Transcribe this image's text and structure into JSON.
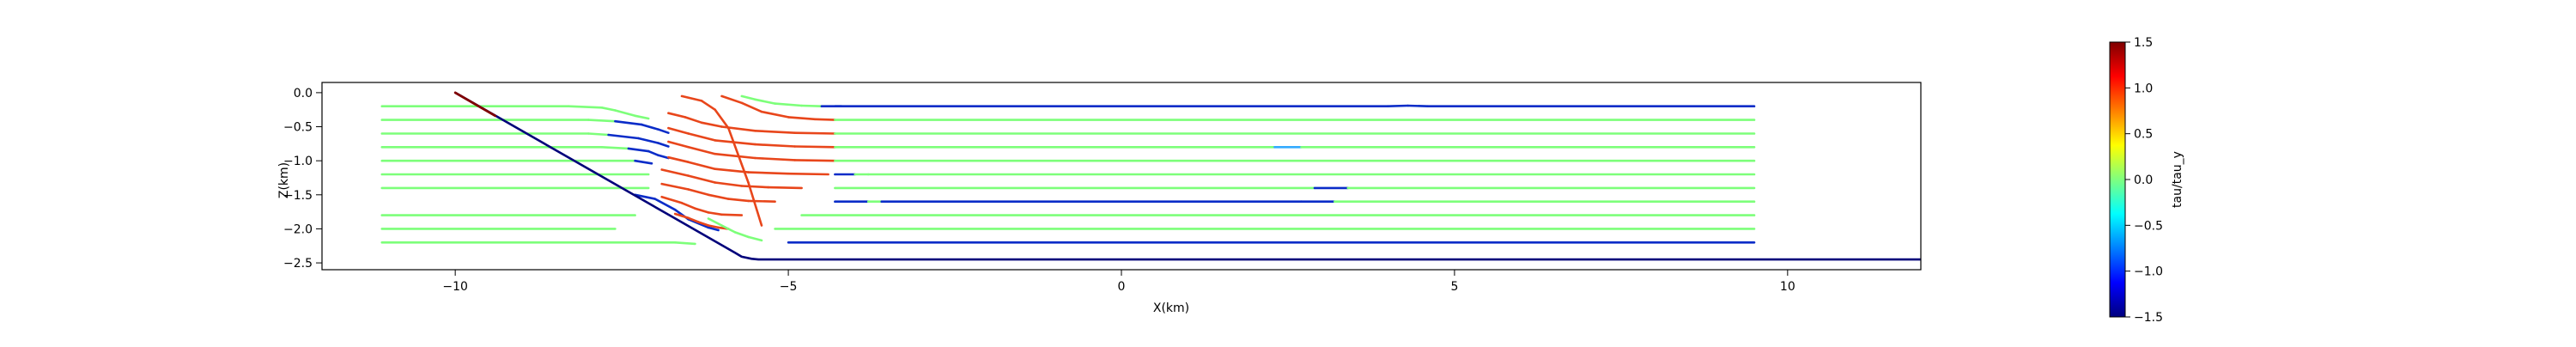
{
  "chart_data": {
    "type": "line",
    "title": "",
    "xlabel": "X(km)",
    "ylabel": "Z(km)",
    "xlim": [
      -12.0,
      12.0
    ],
    "ylim": [
      -2.6,
      0.15
    ],
    "xticks": [
      -10,
      -5,
      0,
      5,
      10
    ],
    "yticks": [
      0.0,
      -0.5,
      -1.0,
      -1.5,
      -2.0,
      -2.5
    ],
    "grid": false,
    "colorbar": {
      "label": "tau/tau_y",
      "vmin": -1.5,
      "vmax": 1.5,
      "colormap": "jet",
      "ticks": [
        1.5,
        1.0,
        0.5,
        0.0,
        -0.5,
        -1.0,
        -1.5
      ]
    },
    "colors": {
      "high": "#e8461b",
      "neutral": "#7dff7a",
      "low": "#0a2cc8",
      "boundary": "#00007a",
      "surface_fault": "#800000"
    },
    "boundary": {
      "name": "",
      "x": [
        -10.0,
        -5.8,
        -5.7,
        -5.55,
        -5.45,
        12.0
      ],
      "y": [
        0.0,
        -2.35,
        -2.41,
        -2.44,
        -2.45,
        -2.45
      ]
    },
    "streamlines": [
      {
        "x": [
          -11.1,
          -8.3,
          -7.8,
          -7.6,
          -7.3,
          -7.1
        ],
        "y": [
          -0.2,
          -0.2,
          -0.22,
          -0.26,
          -0.34,
          -0.38
        ],
        "levels": [
          0.0,
          0.0,
          0.0,
          0.0,
          0.0,
          0.0
        ]
      },
      {
        "x": [
          -11.1,
          -8.0,
          -7.6,
          -7.2,
          -6.95,
          -6.8
        ],
        "y": [
          -0.4,
          -0.4,
          -0.42,
          -0.47,
          -0.54,
          -0.59
        ],
        "levels": [
          0.0,
          0.0,
          0.0,
          -1.2,
          -1.2,
          -1.2
        ]
      },
      {
        "x": [
          -11.1,
          -8.0,
          -7.7,
          -7.25,
          -6.95,
          -6.8
        ],
        "y": [
          -0.6,
          -0.6,
          -0.62,
          -0.67,
          -0.74,
          -0.79
        ],
        "levels": [
          0.0,
          0.0,
          0.0,
          -1.2,
          -1.2,
          -1.2
        ]
      },
      {
        "x": [
          -11.1,
          -7.8,
          -7.4,
          -7.1,
          -6.95,
          -6.8
        ],
        "y": [
          -0.8,
          -0.8,
          -0.82,
          -0.86,
          -0.92,
          -0.96
        ],
        "levels": [
          0.0,
          0.0,
          0.0,
          -1.2,
          -1.2,
          -1.2
        ]
      },
      {
        "x": [
          -11.1,
          -7.3,
          -7.05
        ],
        "y": [
          -1.0,
          -1.0,
          -1.04
        ],
        "levels": [
          0.0,
          0.0,
          -1.2
        ]
      },
      {
        "x": [
          -11.1,
          -7.1
        ],
        "y": [
          -1.2,
          -1.2
        ],
        "levels": [
          0.0,
          0.0
        ]
      },
      {
        "x": [
          -11.1,
          -7.1
        ],
        "y": [
          -1.4,
          -1.4
        ],
        "levels": [
          0.0,
          0.0
        ]
      },
      {
        "x": [
          -11.1,
          -7.3
        ],
        "y": [
          -1.8,
          -1.8
        ],
        "levels": [
          0.0,
          0.0
        ]
      },
      {
        "x": [
          -11.1,
          -7.6
        ],
        "y": [
          -2.0,
          -2.0
        ],
        "levels": [
          0.0,
          0.0
        ]
      },
      {
        "x": [
          -11.1,
          -6.7,
          -6.4
        ],
        "y": [
          -2.2,
          -2.2,
          -2.22
        ],
        "levels": [
          0.0,
          0.0,
          0.0
        ]
      },
      {
        "x": [
          -7.3,
          -7.0,
          -6.7,
          -6.5,
          -6.2,
          -6.05
        ],
        "y": [
          -1.5,
          -1.56,
          -1.72,
          -1.86,
          -1.98,
          -2.02
        ],
        "levels": [
          -1.2,
          -1.2,
          -1.2,
          -1.2,
          -1.2,
          -1.2
        ]
      },
      {
        "x": [
          -6.6,
          -6.3,
          -6.1,
          -5.9,
          -5.6,
          -5.4
        ],
        "y": [
          -0.05,
          -0.12,
          -0.25,
          -0.52,
          -1.32,
          -1.95
        ],
        "levels": [
          0.0,
          1.0,
          1.0,
          1.0,
          1.0,
          1.0
        ]
      },
      {
        "x": [
          -6.0,
          -5.7,
          -5.4,
          -5.0,
          -4.6,
          -4.3
        ],
        "y": [
          -0.05,
          -0.15,
          -0.28,
          -0.36,
          -0.39,
          -0.4
        ],
        "levels": [
          0.0,
          1.0,
          1.0,
          1.0,
          1.0,
          1.0
        ]
      },
      {
        "x": [
          -6.8,
          -6.55,
          -6.3,
          -6.0,
          -5.5,
          -4.9,
          -4.3
        ],
        "y": [
          -0.3,
          -0.36,
          -0.44,
          -0.5,
          -0.56,
          -0.59,
          -0.6
        ],
        "levels": [
          1.0,
          1.0,
          1.0,
          1.0,
          1.0,
          1.0,
          1.0
        ]
      },
      {
        "x": [
          -6.8,
          -6.5,
          -6.1,
          -5.5,
          -4.9,
          -4.3
        ],
        "y": [
          -0.52,
          -0.6,
          -0.7,
          -0.76,
          -0.79,
          -0.8
        ],
        "levels": [
          1.0,
          1.0,
          1.0,
          1.0,
          1.0,
          1.0
        ]
      },
      {
        "x": [
          -6.8,
          -6.5,
          -6.1,
          -5.5,
          -4.9,
          -4.3
        ],
        "y": [
          -0.72,
          -0.8,
          -0.9,
          -0.96,
          -0.99,
          -1.0
        ],
        "levels": [
          1.0,
          1.0,
          1.0,
          1.0,
          1.0,
          1.0
        ]
      },
      {
        "x": [
          -6.8,
          -6.5,
          -6.1,
          -5.6,
          -5.0,
          -4.4
        ],
        "y": [
          -0.95,
          -1.02,
          -1.12,
          -1.17,
          -1.19,
          -1.2
        ],
        "levels": [
          1.0,
          1.0,
          1.0,
          1.0,
          1.0,
          1.0
        ]
      },
      {
        "x": [
          -6.9,
          -6.5,
          -6.1,
          -5.7,
          -5.3,
          -4.8
        ],
        "y": [
          -1.13,
          -1.22,
          -1.32,
          -1.37,
          -1.39,
          -1.4
        ],
        "levels": [
          1.0,
          1.0,
          1.0,
          1.0,
          1.0,
          1.0
        ]
      },
      {
        "x": [
          -6.9,
          -6.5,
          -6.2,
          -5.9,
          -5.6,
          -5.2
        ],
        "y": [
          -1.34,
          -1.42,
          -1.5,
          -1.56,
          -1.59,
          -1.6
        ],
        "levels": [
          1.0,
          1.0,
          1.0,
          1.0,
          1.0,
          1.0
        ]
      },
      {
        "x": [
          -6.9,
          -6.6,
          -6.4,
          -6.2,
          -6.0,
          -5.7
        ],
        "y": [
          -1.53,
          -1.62,
          -1.7,
          -1.76,
          -1.79,
          -1.8
        ],
        "levels": [
          1.0,
          1.0,
          1.0,
          1.0,
          1.0,
          1.0
        ]
      },
      {
        "x": [
          -6.7,
          -6.5,
          -6.35,
          -6.2,
          -6.05,
          -5.9
        ],
        "y": [
          -1.78,
          -1.84,
          -1.9,
          -1.95,
          -1.98,
          -2.0
        ],
        "levels": [
          1.0,
          1.0,
          1.0,
          1.0,
          1.0,
          1.0
        ]
      },
      {
        "x": [
          -5.7,
          -5.5,
          -5.2,
          -4.8,
          -4.5,
          -4.2
        ],
        "y": [
          -0.05,
          -0.1,
          -0.16,
          -0.19,
          -0.2,
          -0.2
        ],
        "levels": [
          0.0,
          0.0,
          0.0,
          0.0,
          0.0,
          -1.4
        ]
      },
      {
        "x": [
          -6.2,
          -6.0,
          -5.8,
          -5.6,
          -5.4
        ],
        "y": [
          -1.85,
          -1.95,
          -2.05,
          -2.12,
          -2.17
        ],
        "levels": [
          0.0,
          0.0,
          0.0,
          0.0,
          0.0
        ]
      },
      {
        "x": [
          -4.3,
          4.0,
          4.3,
          4.6,
          9.5
        ],
        "y": [
          -0.2,
          -0.2,
          -0.19,
          -0.2,
          -0.2
        ],
        "levels": [
          -1.4,
          -1.4,
          -1.4,
          -1.4,
          -1.4
        ]
      },
      {
        "x": [
          -5.0,
          9.5
        ],
        "y": [
          -2.2,
          -2.2
        ],
        "levels": [
          -1.4,
          -1.4
        ]
      },
      {
        "x": [
          -4.3,
          9.5
        ],
        "y": [
          -0.4,
          -0.4
        ],
        "levels": [
          0.0,
          0.0
        ]
      },
      {
        "x": [
          -4.3,
          9.5
        ],
        "y": [
          -0.6,
          -0.6
        ],
        "levels": [
          0.0,
          0.0
        ]
      },
      {
        "x": [
          -4.3,
          2.3,
          2.7,
          9.5
        ],
        "y": [
          -0.8,
          -0.8,
          -0.8,
          -0.8
        ],
        "levels": [
          0.0,
          0.0,
          -0.8,
          0.0
        ]
      },
      {
        "x": [
          -4.3,
          9.5
        ],
        "y": [
          -1.0,
          -1.0
        ],
        "levels": [
          0.0,
          0.0
        ]
      },
      {
        "x": [
          -4.3,
          -4.0,
          -3.8,
          9.5
        ],
        "y": [
          -1.2,
          -1.2,
          -1.2,
          -1.2
        ],
        "levels": [
          -1.3,
          -1.3,
          0.0,
          0.0
        ]
      },
      {
        "x": [
          -4.3,
          2.9,
          3.4,
          9.5
        ],
        "y": [
          -1.4,
          -1.4,
          -1.4,
          -1.4
        ],
        "levels": [
          0.0,
          0.0,
          -1.3,
          0.0
        ]
      },
      {
        "x": [
          -4.3,
          -3.8,
          -3.6,
          2.7,
          3.2,
          9.5
        ],
        "y": [
          -1.6,
          -1.6,
          -1.6,
          -1.6,
          -1.6,
          -1.6
        ],
        "levels": [
          -1.3,
          -1.3,
          0.0,
          -1.3,
          -1.3,
          0.0
        ]
      },
      {
        "x": [
          -4.8,
          9.5
        ],
        "y": [
          -1.8,
          -1.8
        ],
        "levels": [
          0.0,
          0.0
        ]
      },
      {
        "x": [
          -5.2,
          9.5
        ],
        "y": [
          -2.0,
          -2.0
        ],
        "levels": [
          0.0,
          0.0
        ]
      }
    ]
  }
}
